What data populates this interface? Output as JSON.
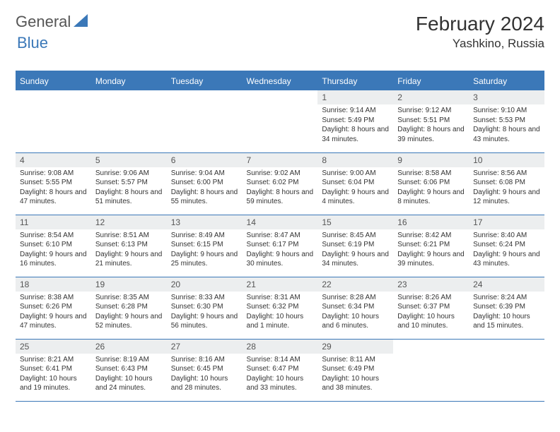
{
  "logo": {
    "textGeneral": "General",
    "textBlue": "Blue"
  },
  "header": {
    "monthTitle": "February 2024",
    "location": "Yashkino, Russia"
  },
  "colors": {
    "accent": "#3b78b8",
    "stripe": "#eceeef",
    "text": "#333333",
    "bg": "#ffffff"
  },
  "dayHeaders": [
    "Sunday",
    "Monday",
    "Tuesday",
    "Wednesday",
    "Thursday",
    "Friday",
    "Saturday"
  ],
  "weeks": [
    [
      null,
      null,
      null,
      null,
      {
        "n": "1",
        "sr": "Sunrise: 9:14 AM",
        "ss": "Sunset: 5:49 PM",
        "dl": "Daylight: 8 hours and 34 minutes."
      },
      {
        "n": "2",
        "sr": "Sunrise: 9:12 AM",
        "ss": "Sunset: 5:51 PM",
        "dl": "Daylight: 8 hours and 39 minutes."
      },
      {
        "n": "3",
        "sr": "Sunrise: 9:10 AM",
        "ss": "Sunset: 5:53 PM",
        "dl": "Daylight: 8 hours and 43 minutes."
      }
    ],
    [
      {
        "n": "4",
        "sr": "Sunrise: 9:08 AM",
        "ss": "Sunset: 5:55 PM",
        "dl": "Daylight: 8 hours and 47 minutes."
      },
      {
        "n": "5",
        "sr": "Sunrise: 9:06 AM",
        "ss": "Sunset: 5:57 PM",
        "dl": "Daylight: 8 hours and 51 minutes."
      },
      {
        "n": "6",
        "sr": "Sunrise: 9:04 AM",
        "ss": "Sunset: 6:00 PM",
        "dl": "Daylight: 8 hours and 55 minutes."
      },
      {
        "n": "7",
        "sr": "Sunrise: 9:02 AM",
        "ss": "Sunset: 6:02 PM",
        "dl": "Daylight: 8 hours and 59 minutes."
      },
      {
        "n": "8",
        "sr": "Sunrise: 9:00 AM",
        "ss": "Sunset: 6:04 PM",
        "dl": "Daylight: 9 hours and 4 minutes."
      },
      {
        "n": "9",
        "sr": "Sunrise: 8:58 AM",
        "ss": "Sunset: 6:06 PM",
        "dl": "Daylight: 9 hours and 8 minutes."
      },
      {
        "n": "10",
        "sr": "Sunrise: 8:56 AM",
        "ss": "Sunset: 6:08 PM",
        "dl": "Daylight: 9 hours and 12 minutes."
      }
    ],
    [
      {
        "n": "11",
        "sr": "Sunrise: 8:54 AM",
        "ss": "Sunset: 6:10 PM",
        "dl": "Daylight: 9 hours and 16 minutes."
      },
      {
        "n": "12",
        "sr": "Sunrise: 8:51 AM",
        "ss": "Sunset: 6:13 PM",
        "dl": "Daylight: 9 hours and 21 minutes."
      },
      {
        "n": "13",
        "sr": "Sunrise: 8:49 AM",
        "ss": "Sunset: 6:15 PM",
        "dl": "Daylight: 9 hours and 25 minutes."
      },
      {
        "n": "14",
        "sr": "Sunrise: 8:47 AM",
        "ss": "Sunset: 6:17 PM",
        "dl": "Daylight: 9 hours and 30 minutes."
      },
      {
        "n": "15",
        "sr": "Sunrise: 8:45 AM",
        "ss": "Sunset: 6:19 PM",
        "dl": "Daylight: 9 hours and 34 minutes."
      },
      {
        "n": "16",
        "sr": "Sunrise: 8:42 AM",
        "ss": "Sunset: 6:21 PM",
        "dl": "Daylight: 9 hours and 39 minutes."
      },
      {
        "n": "17",
        "sr": "Sunrise: 8:40 AM",
        "ss": "Sunset: 6:24 PM",
        "dl": "Daylight: 9 hours and 43 minutes."
      }
    ],
    [
      {
        "n": "18",
        "sr": "Sunrise: 8:38 AM",
        "ss": "Sunset: 6:26 PM",
        "dl": "Daylight: 9 hours and 47 minutes."
      },
      {
        "n": "19",
        "sr": "Sunrise: 8:35 AM",
        "ss": "Sunset: 6:28 PM",
        "dl": "Daylight: 9 hours and 52 minutes."
      },
      {
        "n": "20",
        "sr": "Sunrise: 8:33 AM",
        "ss": "Sunset: 6:30 PM",
        "dl": "Daylight: 9 hours and 56 minutes."
      },
      {
        "n": "21",
        "sr": "Sunrise: 8:31 AM",
        "ss": "Sunset: 6:32 PM",
        "dl": "Daylight: 10 hours and 1 minute."
      },
      {
        "n": "22",
        "sr": "Sunrise: 8:28 AM",
        "ss": "Sunset: 6:34 PM",
        "dl": "Daylight: 10 hours and 6 minutes."
      },
      {
        "n": "23",
        "sr": "Sunrise: 8:26 AM",
        "ss": "Sunset: 6:37 PM",
        "dl": "Daylight: 10 hours and 10 minutes."
      },
      {
        "n": "24",
        "sr": "Sunrise: 8:24 AM",
        "ss": "Sunset: 6:39 PM",
        "dl": "Daylight: 10 hours and 15 minutes."
      }
    ],
    [
      {
        "n": "25",
        "sr": "Sunrise: 8:21 AM",
        "ss": "Sunset: 6:41 PM",
        "dl": "Daylight: 10 hours and 19 minutes."
      },
      {
        "n": "26",
        "sr": "Sunrise: 8:19 AM",
        "ss": "Sunset: 6:43 PM",
        "dl": "Daylight: 10 hours and 24 minutes."
      },
      {
        "n": "27",
        "sr": "Sunrise: 8:16 AM",
        "ss": "Sunset: 6:45 PM",
        "dl": "Daylight: 10 hours and 28 minutes."
      },
      {
        "n": "28",
        "sr": "Sunrise: 8:14 AM",
        "ss": "Sunset: 6:47 PM",
        "dl": "Daylight: 10 hours and 33 minutes."
      },
      {
        "n": "29",
        "sr": "Sunrise: 8:11 AM",
        "ss": "Sunset: 6:49 PM",
        "dl": "Daylight: 10 hours and 38 minutes."
      },
      null,
      null
    ]
  ]
}
